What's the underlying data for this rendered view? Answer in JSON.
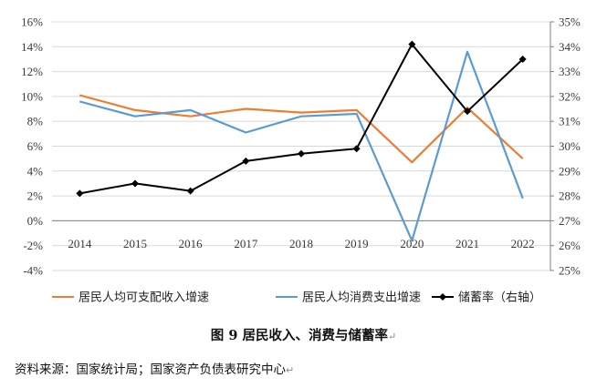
{
  "figure": {
    "caption": "图 9  居民收入、消费与储蓄率",
    "caption_mark": "↵",
    "source": "资料来源：国家统计局；国家资产负债表研究中心",
    "source_mark": "↵"
  },
  "chart_data": {
    "type": "line",
    "x": [
      "2014",
      "2015",
      "2016",
      "2017",
      "2018",
      "2019",
      "2020",
      "2021",
      "2022"
    ],
    "y_left": {
      "ylim": [
        -4,
        16
      ],
      "ticks": [
        -4,
        -2,
        0,
        2,
        4,
        6,
        8,
        10,
        12,
        14,
        16
      ],
      "tick_labels": [
        "-4%",
        "-2%",
        "0%",
        "2%",
        "4%",
        "6%",
        "8%",
        "10%",
        "12%",
        "14%",
        "16%"
      ]
    },
    "y_right": {
      "ylim": [
        25,
        35
      ],
      "ticks": [
        25,
        26,
        27,
        28,
        29,
        30,
        31,
        32,
        33,
        34,
        35
      ],
      "tick_labels": [
        "25%",
        "26%",
        "27%",
        "28%",
        "29%",
        "30%",
        "31%",
        "32%",
        "33%",
        "34%",
        "35%"
      ]
    },
    "grid": "horizontal",
    "legend": "bottom",
    "series": [
      {
        "name": "居民人均可支配收入增速",
        "axis": "left",
        "color": "#ED7D31",
        "marker": "none",
        "values": [
          10.1,
          8.9,
          8.4,
          9.0,
          8.7,
          8.9,
          4.7,
          9.1,
          5.0
        ]
      },
      {
        "name": "居民人均消费支出增速",
        "axis": "left",
        "color": "#5B9BD5",
        "marker": "none",
        "values": [
          9.6,
          8.4,
          8.9,
          7.1,
          8.4,
          8.6,
          -1.6,
          13.6,
          1.8
        ]
      },
      {
        "name": "储蓄率（右轴）",
        "axis": "right",
        "color": "#000000",
        "marker": "diamond",
        "values": [
          28.1,
          28.5,
          28.2,
          29.4,
          29.7,
          29.9,
          34.1,
          31.4,
          33.5
        ]
      }
    ]
  }
}
